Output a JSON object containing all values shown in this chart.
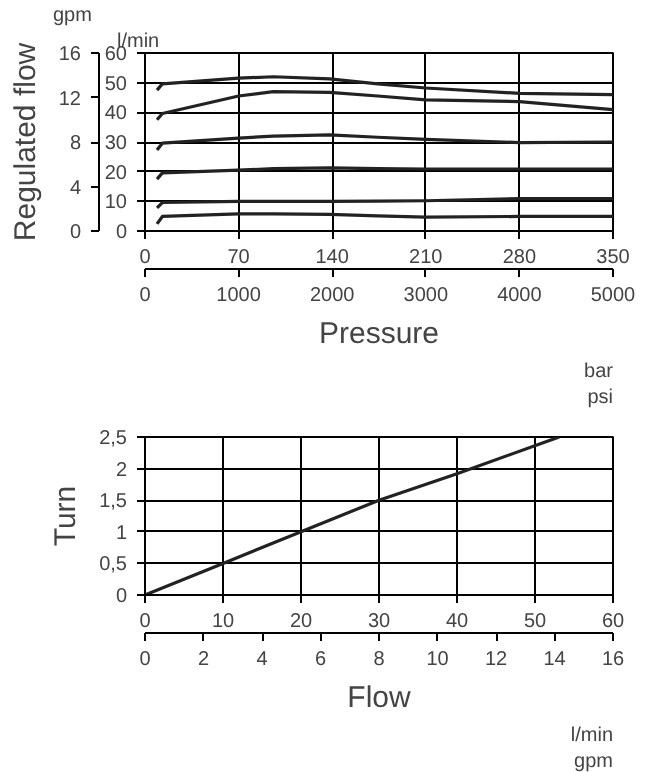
{
  "chart_data": [
    {
      "type": "line",
      "x2label": "Pressure",
      "y2label": "Regulated flow",
      "annotations": [
        "bar",
        "psi",
        "l/min",
        "gpm"
      ],
      "xlim": [
        0,
        350
      ],
      "xticks": [
        0,
        70,
        140,
        210,
        280,
        350
      ],
      "x2lim": [
        0,
        5000
      ],
      "x2ticks": [
        0,
        1000,
        2000,
        3000,
        4000,
        5000
      ],
      "ylim": [
        0,
        60
      ],
      "yticks": [
        0,
        10,
        20,
        30,
        40,
        50,
        60
      ],
      "y2lim": [
        0,
        16
      ],
      "y2ticks": [
        0,
        4,
        8,
        12,
        16
      ],
      "grid": true,
      "x": [
        9,
        13,
        70,
        96,
        138,
        174,
        210,
        280,
        350
      ],
      "series": [
        {
          "color": "#222222",
          "values": [
            47.5,
            49.6,
            51.5,
            52,
            51.3,
            49.6,
            48.2,
            46.4,
            46
          ]
        },
        {
          "color": "#222222",
          "values": [
            37.5,
            39.6,
            45.5,
            47,
            46.7,
            45.5,
            44.2,
            43.6,
            40.9
          ]
        },
        {
          "color": "#222222",
          "values": [
            27.3,
            29.6,
            31.3,
            32,
            32.4,
            31.6,
            30.9,
            29.8,
            30
          ]
        },
        {
          "color": "#222222",
          "values": [
            17.5,
            19.6,
            20.5,
            21,
            21.3,
            21,
            20.9,
            20.9,
            20.9
          ]
        },
        {
          "color": "#222222",
          "values": [
            7.8,
            9.6,
            10,
            10,
            10,
            10.1,
            10.2,
            10.9,
            10.9
          ]
        },
        {
          "color": "#222222",
          "values": [
            2.4,
            4.9,
            5.8,
            5.8,
            5.6,
            5.1,
            4.7,
            4.9,
            4.9
          ]
        }
      ]
    },
    {
      "type": "line",
      "x2label": "Flow",
      "ylabel": "Turn",
      "annotations": [
        "l/min",
        "gpm"
      ],
      "xlim": [
        0,
        60
      ],
      "xticks": [
        0,
        10,
        20,
        30,
        40,
        50,
        60
      ],
      "x2lim": [
        0,
        16
      ],
      "x2ticks": [
        0,
        2,
        4,
        6,
        8,
        10,
        12,
        14,
        16
      ],
      "ylim": [
        0,
        2.5
      ],
      "yticks": [
        0,
        {
          "value": 0.5,
          "label": "0,5"
        },
        1,
        {
          "value": 1.5,
          "label": "1,5"
        },
        2,
        {
          "value": 2.5,
          "label": "2,5"
        }
      ],
      "grid": true,
      "x": [
        0,
        10,
        20,
        30,
        40,
        53.1
      ],
      "series": [
        {
          "color": "#222222",
          "values": [
            0,
            0.5,
            1,
            1.5,
            1.92,
            2.5
          ]
        }
      ]
    }
  ]
}
